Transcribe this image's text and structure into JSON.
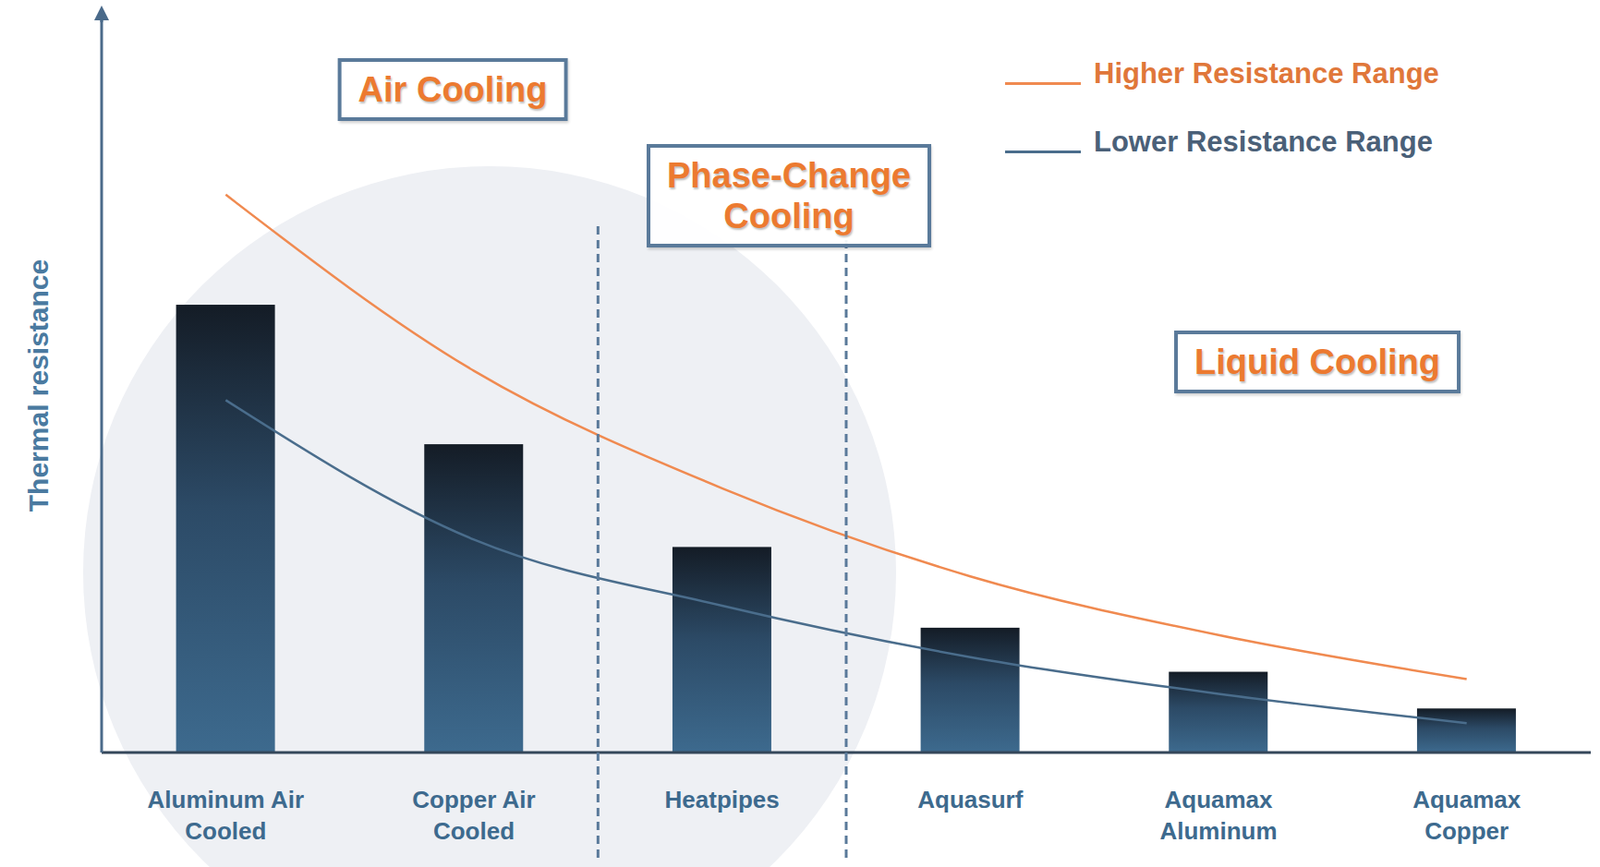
{
  "chart_data": {
    "type": "bar",
    "y_label": "Thermal resistance",
    "categories": [
      "Aluminum Air Cooled",
      "Copper Air Cooled",
      "Heatpipes",
      "Aquasurf",
      "Aquamax Aluminum",
      "Aquamax Copper"
    ],
    "values": [
      61,
      42,
      28,
      17,
      11,
      6
    ],
    "color": "#3d6a8e",
    "series": [
      {
        "name": "Higher Resistance Range",
        "type": "line",
        "color": "#f08a50",
        "values": [
          76,
          52,
          36,
          24,
          16,
          10
        ]
      },
      {
        "name": "Lower Resistance Range",
        "type": "line",
        "color": "#4a6d8c",
        "values": [
          48,
          29,
          20,
          13,
          8,
          4
        ]
      }
    ],
    "ylim": [
      0,
      100
    ],
    "tick_labels": "x",
    "grid": false,
    "legend": "upper right",
    "annotations": [
      "Air Cooling",
      "Phase-Change Cooling",
      "Liquid Cooling"
    ]
  }
}
